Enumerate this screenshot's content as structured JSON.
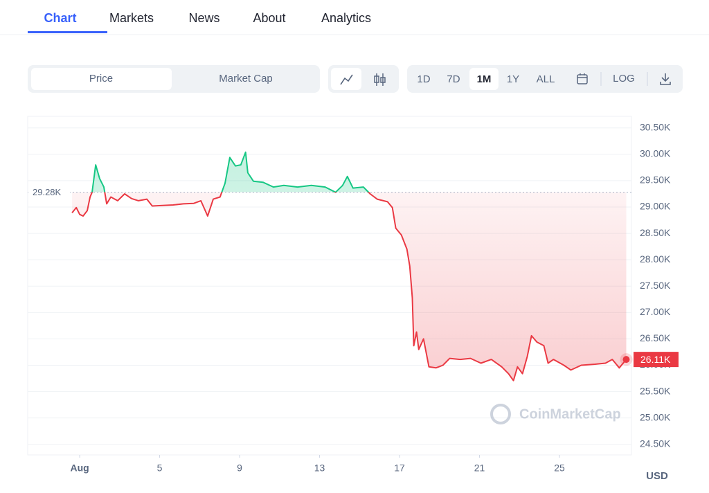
{
  "nav": [
    "Chart",
    "Markets",
    "News",
    "About",
    "Analytics"
  ],
  "toolbar": {
    "metric_tabs": [
      "Price",
      "Market Cap"
    ],
    "ranges": [
      "1D",
      "7D",
      "1M",
      "1Y",
      "ALL"
    ],
    "scale_button": "LOG"
  },
  "chart_data": {
    "type": "line",
    "x": [
      0.62,
      0.83,
      1.0,
      1.17,
      1.38,
      1.52,
      1.62,
      1.8,
      2.0,
      2.21,
      2.35,
      2.56,
      2.9,
      3.25,
      3.6,
      3.94,
      4.36,
      4.63,
      5.15,
      5.67,
      6.19,
      6.71,
      7.06,
      7.4,
      7.68,
      8.02,
      8.27,
      8.51,
      8.79,
      9.06,
      9.3,
      9.41,
      9.69,
      10.17,
      10.69,
      11.21,
      11.9,
      12.59,
      13.28,
      13.8,
      14.15,
      14.39,
      14.67,
      15.19,
      15.53,
      15.88,
      16.4,
      16.64,
      16.81,
      17.09,
      17.37,
      17.51,
      17.64,
      17.71,
      17.85,
      17.96,
      18.2,
      18.47,
      18.82,
      19.17,
      19.51,
      20.03,
      20.55,
      21.07,
      21.59,
      22.11,
      22.45,
      22.7,
      22.9,
      23.15,
      23.39,
      23.6,
      23.87,
      24.22,
      24.43,
      24.7,
      25.22,
      25.57,
      26.09,
      26.78,
      27.3,
      27.64,
      27.99,
      28.34
    ],
    "values": [
      28890,
      28990,
      28860,
      28830,
      28930,
      29190,
      29280,
      29800,
      29540,
      29380,
      29060,
      29190,
      29120,
      29250,
      29160,
      29120,
      29150,
      29020,
      29030,
      29040,
      29060,
      29070,
      29120,
      28830,
      29150,
      29190,
      29450,
      29940,
      29780,
      29800,
      30040,
      29650,
      29490,
      29470,
      29380,
      29410,
      29380,
      29410,
      29380,
      29280,
      29410,
      29580,
      29360,
      29380,
      29250,
      29150,
      29100,
      28990,
      28600,
      28470,
      28200,
      27880,
      27280,
      26370,
      26630,
      26300,
      26500,
      25970,
      25950,
      26000,
      26130,
      26110,
      26130,
      26040,
      26110,
      25970,
      25840,
      25710,
      25970,
      25840,
      26170,
      26560,
      26440,
      26370,
      26040,
      26110,
      26000,
      25910,
      26000,
      26020,
      26040,
      26110,
      25950,
      26110
    ],
    "color_above": "#16c784",
    "color_below": "#ea3943",
    "xlim": [
      -1.6,
      28.6
    ],
    "xticks": [
      {
        "value": 1,
        "label": "Aug"
      },
      5,
      9,
      13,
      17,
      21,
      25
    ],
    "ylim": [
      24300,
      30720
    ],
    "yticks": [
      {
        "value": 24500,
        "label": "24.50K"
      },
      {
        "value": 25000,
        "label": "25.00K"
      },
      {
        "value": 25500,
        "label": "25.50K"
      },
      {
        "value": 26000,
        "label": "26.00K"
      },
      {
        "value": 26500,
        "label": "26.50K"
      },
      {
        "value": 27000,
        "label": "27.00K"
      },
      {
        "value": 27500,
        "label": "27.50K"
      },
      {
        "value": 28000,
        "label": "28.00K"
      },
      {
        "value": 28500,
        "label": "28.50K"
      },
      {
        "value": 29000,
        "label": "29.00K"
      },
      {
        "value": 29500,
        "label": "29.50K"
      },
      {
        "value": 30000,
        "label": "30.00K"
      },
      {
        "value": 30500,
        "label": "30.50K"
      }
    ],
    "grid": true,
    "reference": {
      "value": 29280,
      "label": "29.28K"
    },
    "last_value_label": "26.11K",
    "watermark": "CoinMarketCap",
    "y_unit_label": "USD"
  }
}
